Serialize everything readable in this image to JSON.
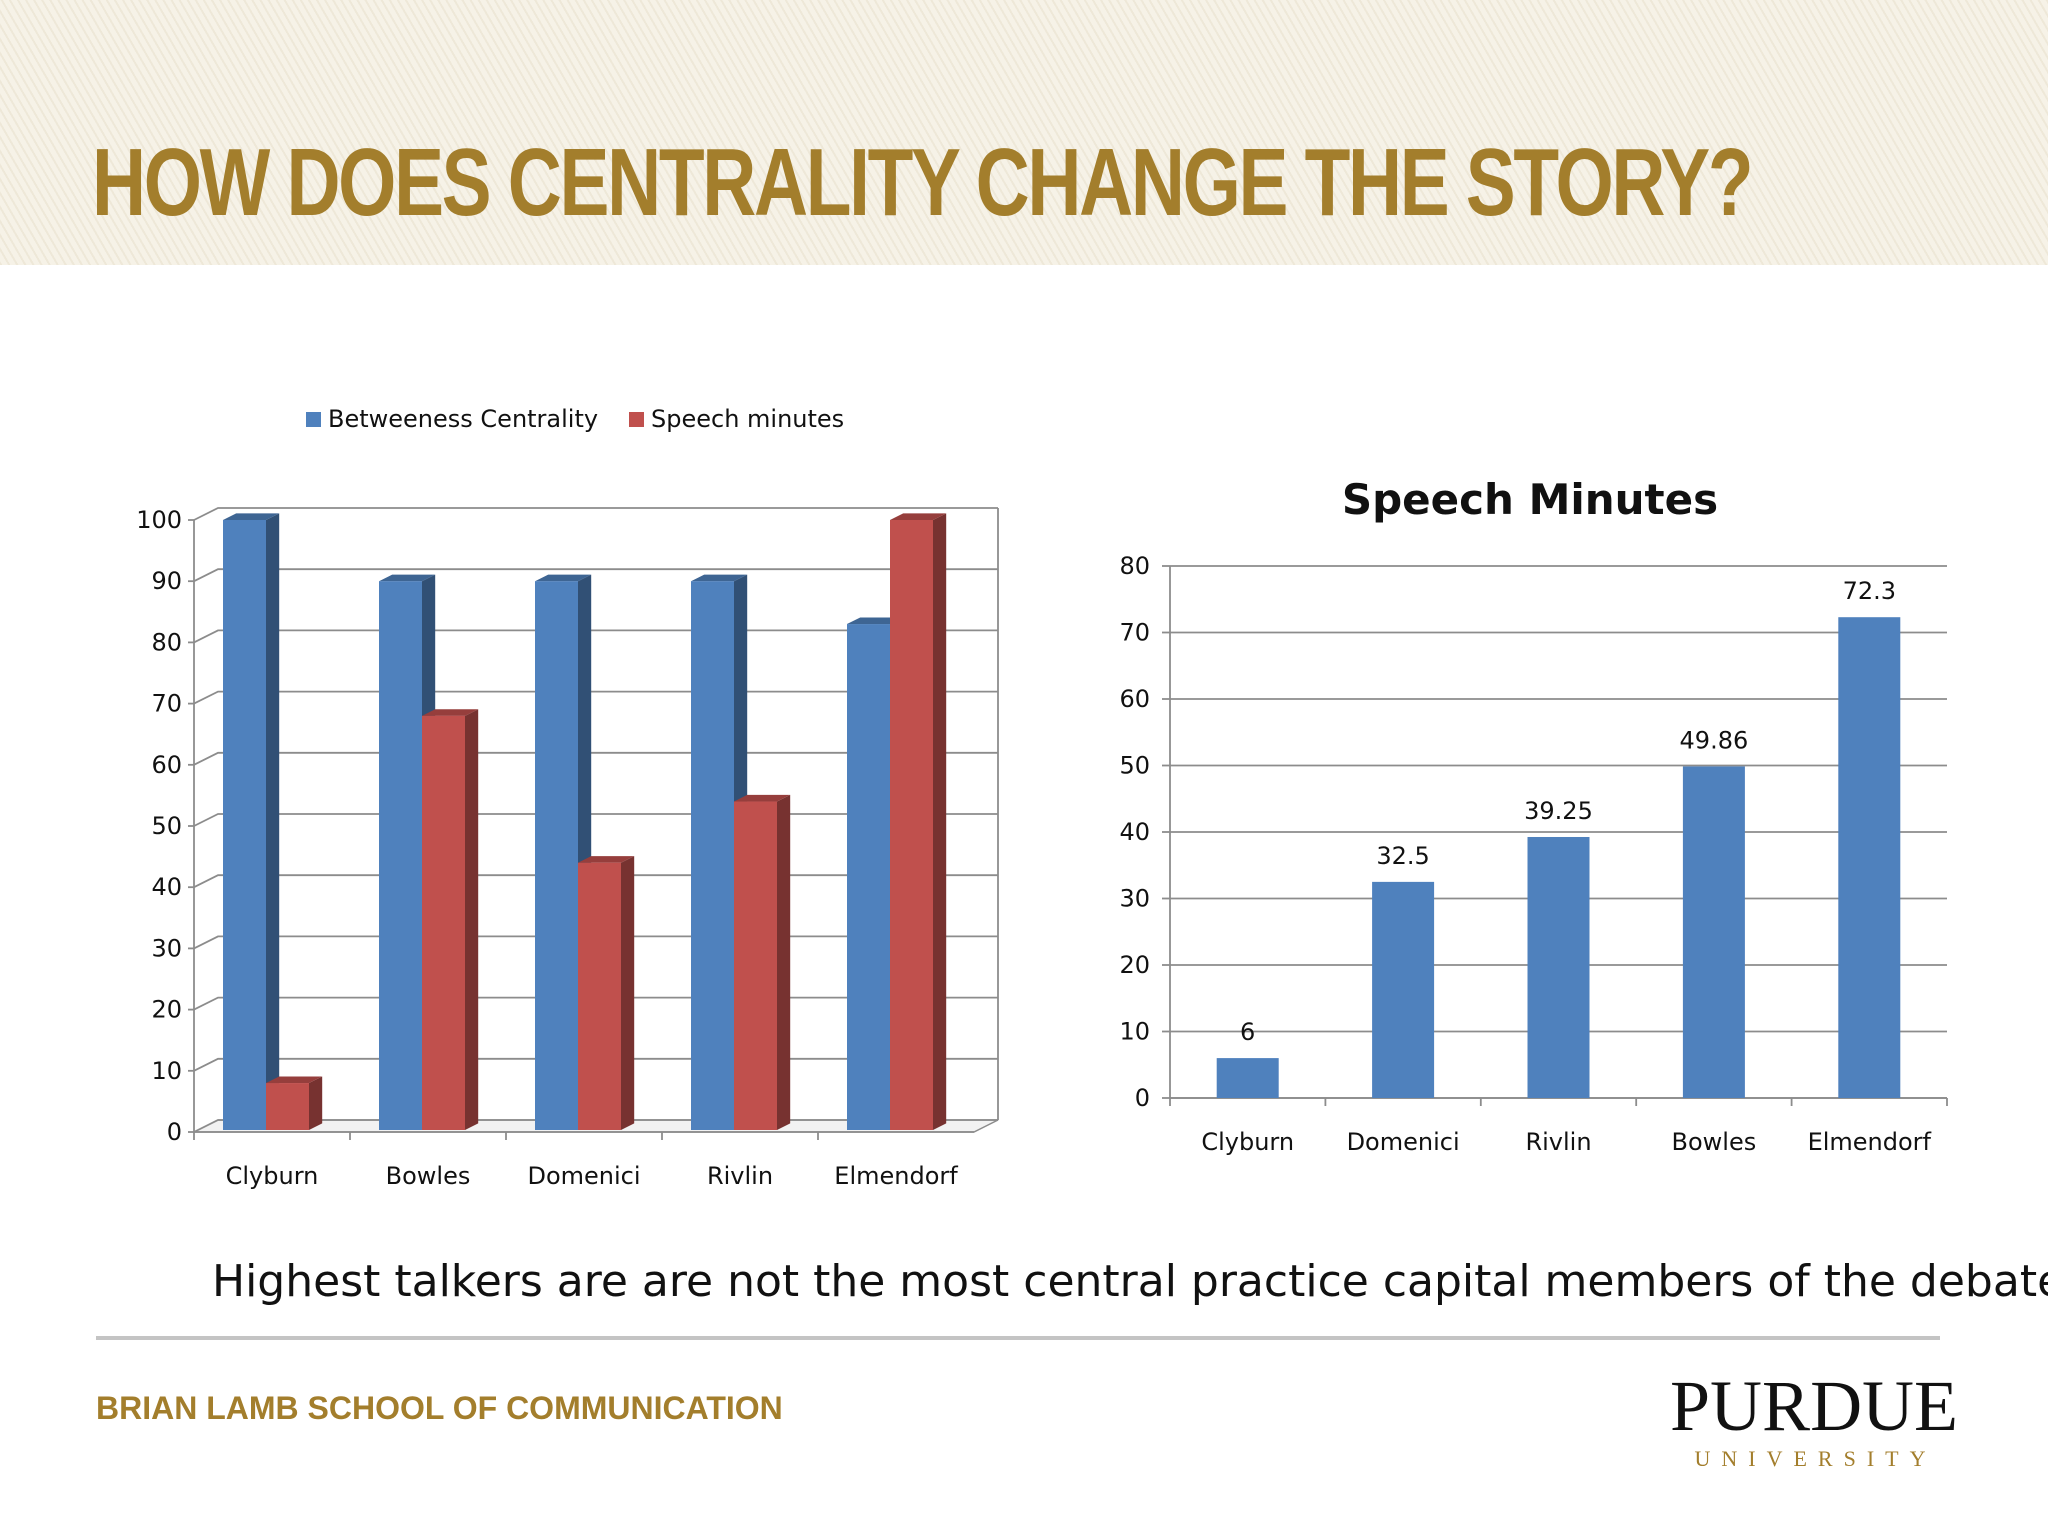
{
  "slide": {
    "title": "HOW DOES CENTRALITY CHANGE THE STORY?",
    "caption": "Highest talkers are are not the most central practice capital members of the debate",
    "footer_school": "BRIAN LAMB SCHOOL OF COMMUNICATION",
    "logo_name": "PURDUE",
    "logo_sub": "UNIVERSITY",
    "colors": {
      "title": "#a37e2c",
      "blue": "#4f81bd",
      "red": "#c0504d"
    }
  },
  "chart_data": [
    {
      "type": "bar",
      "style": "3d-clustered",
      "title": "",
      "categories": [
        "Clyburn",
        "Bowles",
        "Domenici",
        "Rivlin",
        "Elmendorf"
      ],
      "series": [
        {
          "name": "Betweeness Centrality",
          "color": "#4f81bd",
          "values": [
            100,
            90,
            90,
            90,
            83
          ]
        },
        {
          "name": "Speech minutes",
          "color": "#c0504d",
          "values": [
            8,
            68,
            44,
            54,
            100
          ]
        }
      ],
      "ylim": [
        0,
        100
      ],
      "yticks": [
        0,
        10,
        20,
        30,
        40,
        50,
        60,
        70,
        80,
        90,
        100
      ],
      "legend": "top",
      "grid": true
    },
    {
      "type": "bar",
      "title": "Speech Minutes",
      "categories": [
        "Clyburn",
        "Domenici",
        "Rivlin",
        "Bowles",
        "Elmendorf"
      ],
      "values": [
        6,
        32.5,
        39.25,
        49.86,
        72.3
      ],
      "labels": [
        "6",
        "32.5",
        "39.25",
        "49.86",
        "72.3"
      ],
      "color": "#4f81bd",
      "ylim": [
        0,
        80
      ],
      "yticks": [
        0,
        10,
        20,
        30,
        40,
        50,
        60,
        70,
        80
      ],
      "grid": true
    }
  ]
}
